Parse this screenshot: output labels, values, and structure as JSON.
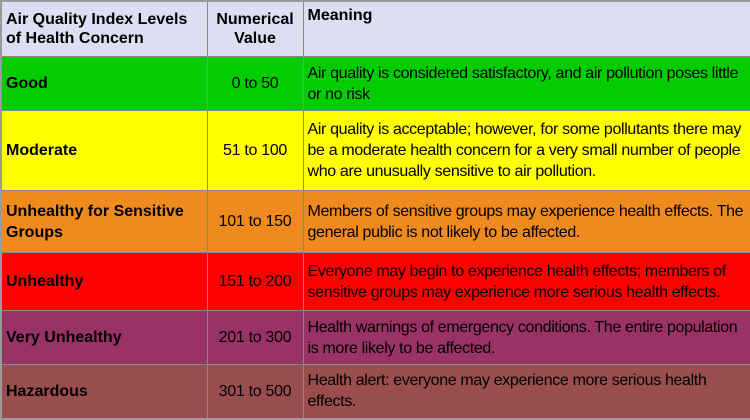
{
  "table": {
    "headers": {
      "level": "Air Quality Index Levels of Health Concern",
      "value": "Numerical Value",
      "meaning": "Meaning"
    },
    "rows": [
      {
        "level": "Good",
        "value": "0 to 50",
        "meaning": "Air quality is considered satisfactory, and air pollution poses little or no risk",
        "color": "#00cc00"
      },
      {
        "level": "Moderate",
        "value": "51 to 100",
        "meaning": "Air quality is acceptable; however, for some pollutants there may be a moderate health concern for a very small number of people who are unusually sensitive to air pollution.",
        "color": "#ffff00"
      },
      {
        "level": "Unhealthy for Sensitive Groups",
        "value": "101 to 150",
        "meaning": "Members of sensitive groups may experience health effects. The general public is not likely to be affected.",
        "color": "#ef8a1e"
      },
      {
        "level": "Unhealthy",
        "value": "151 to 200",
        "meaning": "Everyone may begin to experience health effects; members of sensitive groups may experience more serious health effects.",
        "color": "#ff0000"
      },
      {
        "level": "Very Unhealthy",
        "value": "201 to 300",
        "meaning": "Health warnings of emergency conditions. The entire population is more likely to be affected.",
        "color": "#993366"
      },
      {
        "level": "Hazardous",
        "value": "301 to 500",
        "meaning": "Health alert: everyone may experience more serious health effects.",
        "color": "#994d4d"
      }
    ]
  }
}
